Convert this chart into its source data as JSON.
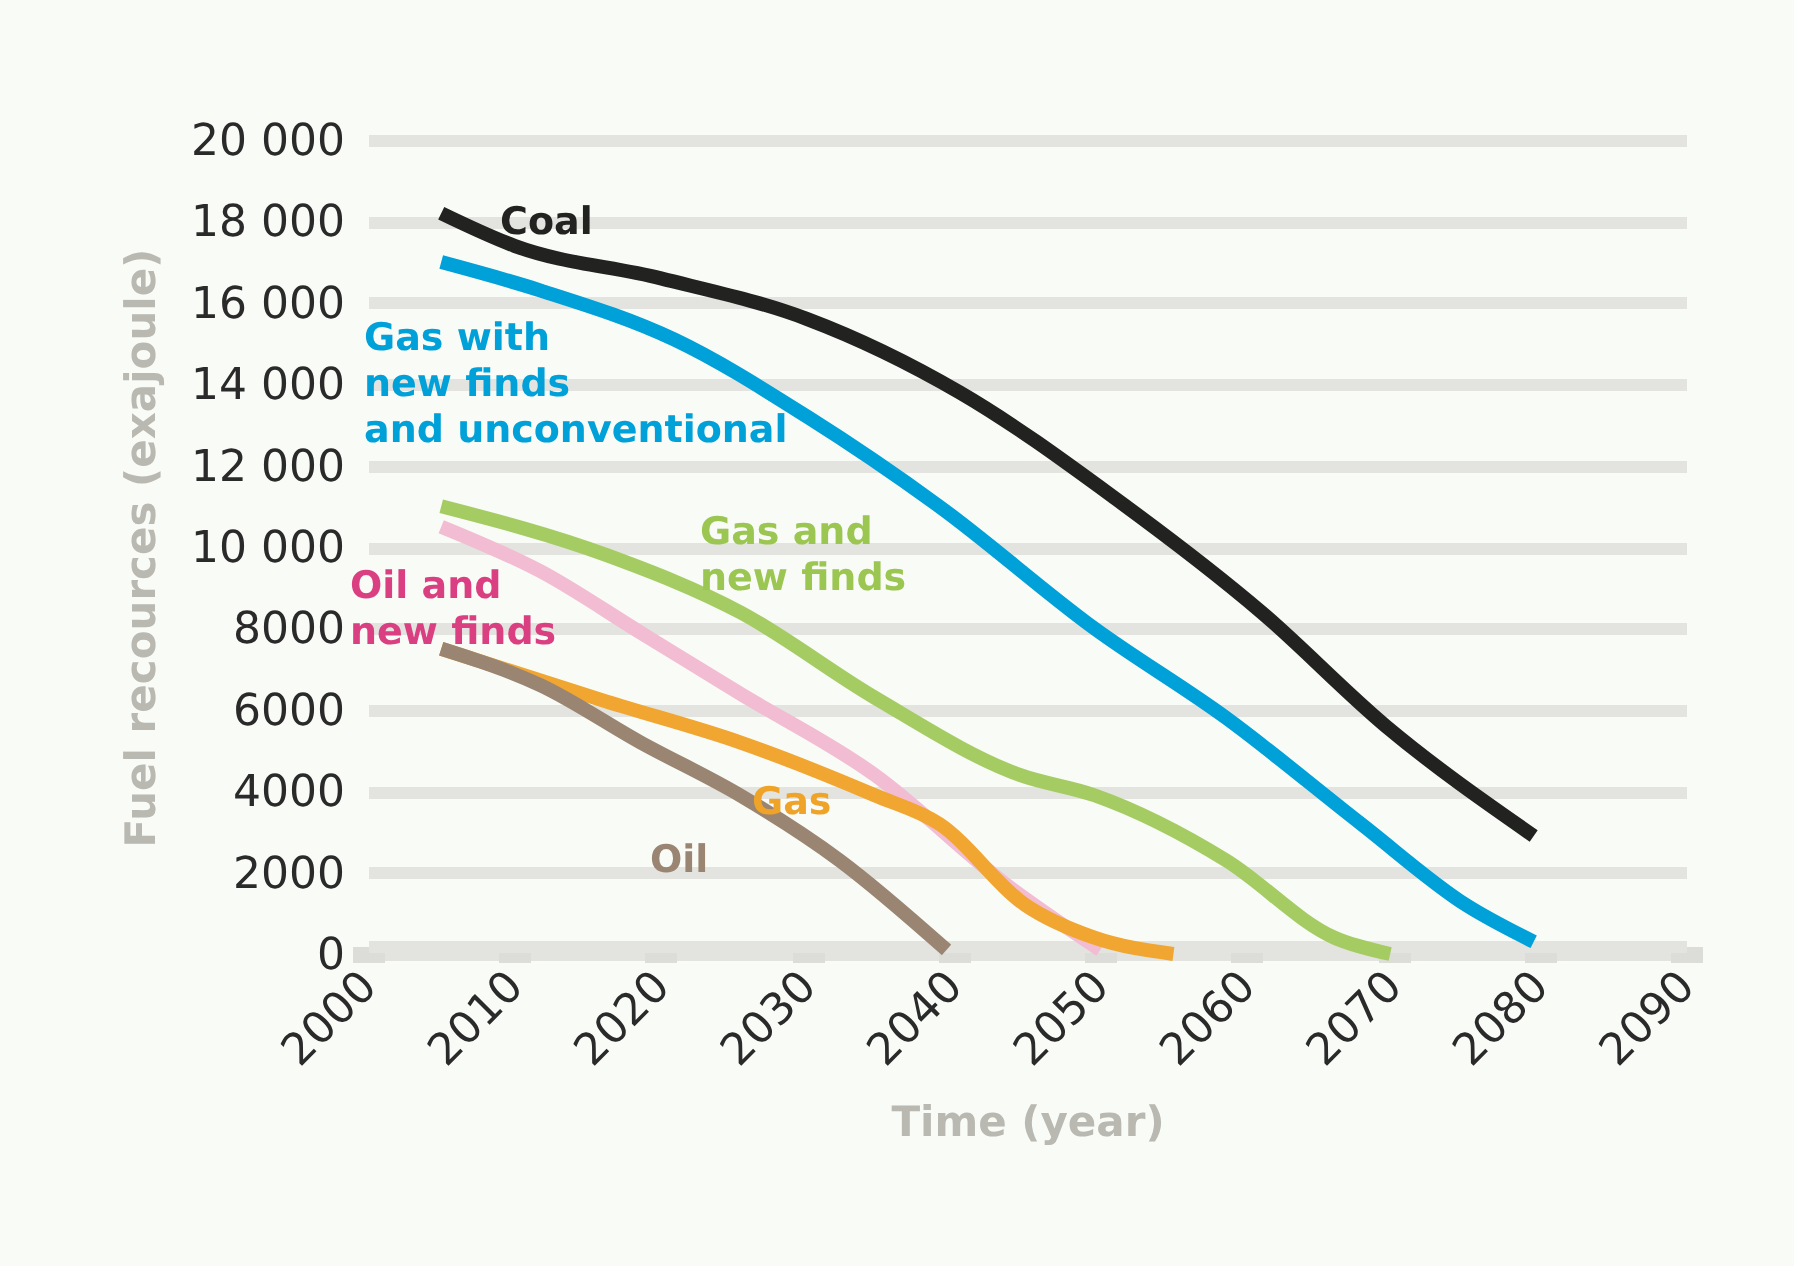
{
  "chart_data": {
    "type": "line",
    "xlabel": "Time (year)",
    "ylabel": "Fuel recources (exajoule)",
    "xlim": [
      2000,
      2090
    ],
    "xticks": [
      2000,
      2010,
      2020,
      2030,
      2040,
      2050,
      2060,
      2070,
      2080,
      2090
    ],
    "ylim": [
      0,
      20000
    ],
    "yticks": [
      0,
      2000,
      4000,
      6000,
      8000,
      {
        "value": 10000,
        "label": "10 000"
      },
      {
        "value": 12000,
        "label": "12 000"
      },
      {
        "value": 14000,
        "label": "14 000"
      },
      {
        "value": 16000,
        "label": "16 000"
      },
      {
        "value": 18000,
        "label": "18 000"
      },
      {
        "value": 20000,
        "label": "20 000"
      }
    ],
    "grid": "y",
    "legend": false,
    "marker": "none",
    "line_style": "solid",
    "series": [
      {
        "name": "Coal",
        "color": "#222220",
        "x": [
          2005,
          2010,
          2020,
          2030,
          2040.4,
          2051,
          2061,
          2069.5,
          2079.6
        ],
        "values": [
          18200,
          17400,
          16600,
          15600,
          13800,
          11200,
          8400,
          5600,
          2900
        ]
      },
      {
        "name": "Gas with new finds and unconventional",
        "color": "#00a0d8",
        "x": [
          2005,
          2011.8,
          2020.9,
          2030,
          2039,
          2049.6,
          2058.6,
          2067.8,
          2075,
          2079.6
        ],
        "values": [
          17000,
          16300,
          15100,
          13200,
          11000,
          8000,
          5800,
          3200,
          1200,
          300
        ]
      },
      {
        "name": "Gas and new finds",
        "color": "#a5cc63",
        "x": [
          2005,
          2016.3,
          2025.4,
          2034.6,
          2044.5,
          2049.6,
          2058.6,
          2066,
          2069.8
        ],
        "values": [
          11000,
          9800,
          8400,
          6300,
          4400,
          3900,
          2300,
          400,
          0
        ]
      },
      {
        "name": "Oil and new finds",
        "color": "#f2bcd3",
        "x": [
          2005,
          2011.8,
          2018.6,
          2025.4,
          2034.6,
          2043.6,
          2050
        ],
        "values": [
          10500,
          9400,
          7900,
          6400,
          4400,
          1700,
          100
        ]
      },
      {
        "name": "Gas",
        "color": "#f0a630",
        "x": [
          2005,
          2016.3,
          2025.4,
          2034.6,
          2039,
          2044.9,
          2049.6,
          2055
        ],
        "values": [
          7500,
          6200,
          5200,
          3900,
          3200,
          1200,
          400,
          0
        ]
      },
      {
        "name": "Oil",
        "color": "#9a8572",
        "x": [
          2005,
          2011.8,
          2018.6,
          2025.4,
          2032.2,
          2039.5
        ],
        "values": [
          7500,
          6600,
          5200,
          3900,
          2300,
          100
        ]
      }
    ]
  }
}
